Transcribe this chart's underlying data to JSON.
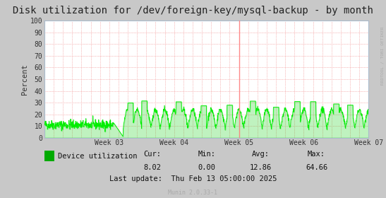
{
  "title": "Disk utilization for /dev/foreign-key/mysql-backup - by month",
  "ylabel": "Percent",
  "ylim": [
    0,
    100
  ],
  "yticks": [
    0,
    10,
    20,
    30,
    40,
    50,
    60,
    70,
    80,
    90,
    100
  ],
  "bg_color": "#C8C8C8",
  "plot_bg_color": "#FFFFFF",
  "grid_color": "#F08080",
  "grid_style": ":",
  "line_color": "#00EE00",
  "fill_color": "#00CC00",
  "week_labels": [
    "Week 03",
    "Week 04",
    "Week 05",
    "Week 06",
    "Week 07"
  ],
  "red_line_color": "#FF8080",
  "legend_label": "Device utilization",
  "legend_color": "#00AA00",
  "cur_label": "Cur:",
  "cur_val": "8.02",
  "min_label": "Min:",
  "min_val": "0.00",
  "avg_label": "Avg:",
  "avg_val": "12.86",
  "max_label": "Max:",
  "max_val": "64.66",
  "last_update": "Last update:  Thu Feb 13 05:00:00 2025",
  "munin_label": "Munin 2.0.33-1",
  "rrdtool_label": "RRDTOOL / TOBI OETIKER",
  "title_fontsize": 10,
  "axis_fontsize": 7,
  "legend_fontsize": 7.5,
  "stats_fontsize": 7.5
}
